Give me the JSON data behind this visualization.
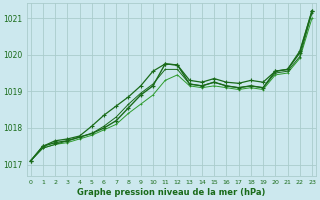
{
  "title": "Graphe pression niveau de la mer (hPa)",
  "background_color": "#cce8ee",
  "grid_color": "#aacccc",
  "line_color_dark": "#1a6b1a",
  "line_color_light": "#2d9b2d",
  "x_ticks": [
    0,
    1,
    2,
    3,
    4,
    5,
    6,
    7,
    8,
    9,
    10,
    11,
    12,
    13,
    14,
    15,
    16,
    17,
    18,
    19,
    20,
    21,
    22,
    23
  ],
  "xlim": [
    -0.3,
    23.3
  ],
  "ylim": [
    1016.7,
    1021.4
  ],
  "yticks": [
    1017,
    1018,
    1019,
    1020,
    1021
  ],
  "series1": [
    1017.1,
    1017.5,
    1017.6,
    1017.65,
    1017.75,
    1017.85,
    1018.0,
    1018.2,
    1018.55,
    1018.9,
    1019.15,
    1019.75,
    1019.72,
    1019.2,
    1019.15,
    1019.25,
    1019.15,
    1019.1,
    1019.15,
    1019.1,
    1019.55,
    1019.6,
    1020.05,
    1021.2
  ],
  "series2": [
    1017.1,
    1017.45,
    1017.55,
    1017.6,
    1017.7,
    1017.8,
    1017.95,
    1018.1,
    1018.4,
    1018.65,
    1018.9,
    1019.3,
    1019.45,
    1019.15,
    1019.1,
    1019.15,
    1019.1,
    1019.05,
    1019.1,
    1019.05,
    1019.45,
    1019.5,
    1019.9,
    1021.0
  ],
  "series3": [
    1017.1,
    1017.45,
    1017.55,
    1017.65,
    1017.75,
    1017.85,
    1018.05,
    1018.3,
    1018.65,
    1018.95,
    1019.2,
    1019.6,
    1019.6,
    1019.2,
    1019.15,
    1019.25,
    1019.15,
    1019.1,
    1019.15,
    1019.1,
    1019.5,
    1019.55,
    1019.95,
    1021.15
  ],
  "series4": [
    1017.1,
    1017.5,
    1017.65,
    1017.7,
    1017.78,
    1018.05,
    1018.35,
    1018.6,
    1018.85,
    1019.15,
    1019.55,
    1019.75,
    1019.72,
    1019.3,
    1019.25,
    1019.35,
    1019.25,
    1019.22,
    1019.3,
    1019.25,
    1019.55,
    1019.6,
    1020.1,
    1021.2
  ]
}
